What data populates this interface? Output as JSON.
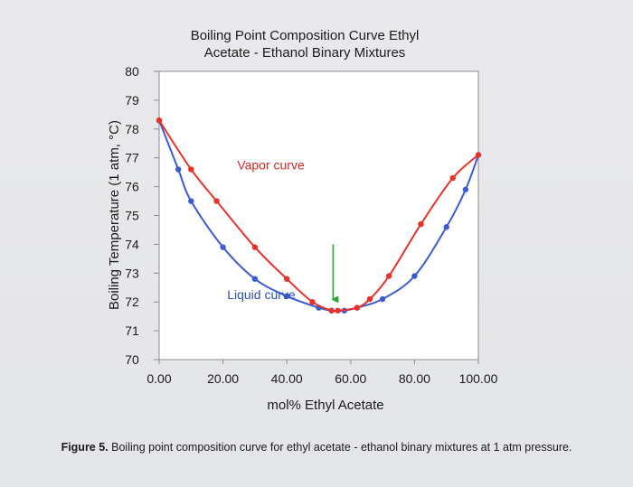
{
  "chart_data": {
    "type": "line",
    "title_line1": "Boiling Point Composition Curve Ethyl",
    "title_line2": "Acetate - Ethanol Binary Mixtures",
    "xlabel": "mol% Ethyl Acetate",
    "ylabel": "Boiling Temperature (1 atm, °C)",
    "xlim": [
      0,
      100
    ],
    "ylim": [
      70,
      80
    ],
    "x_ticks": [
      "0.00",
      "20.00",
      "40.00",
      "60.00",
      "80.00",
      "100.00"
    ],
    "y_ticks": [
      "70",
      "71",
      "72",
      "73",
      "74",
      "75",
      "76",
      "77",
      "78",
      "79",
      "80"
    ],
    "grid": false,
    "series": [
      {
        "name": "Vapor curve",
        "color": "#e8312a",
        "x": [
          0,
          10,
          18,
          30,
          40,
          48,
          54,
          56,
          62,
          66,
          72,
          82,
          92,
          100
        ],
        "y": [
          78.3,
          76.6,
          75.5,
          73.9,
          72.8,
          72.0,
          71.7,
          71.7,
          71.8,
          72.1,
          72.9,
          74.7,
          76.3,
          77.1
        ]
      },
      {
        "name": "Liquid curve",
        "color": "#3a5bd1",
        "x": [
          0,
          6,
          10,
          20,
          30,
          40,
          50,
          54,
          58,
          62,
          70,
          80,
          90,
          96,
          100
        ],
        "y": [
          78.3,
          76.6,
          75.5,
          73.9,
          72.8,
          72.2,
          71.8,
          71.7,
          71.7,
          71.8,
          72.1,
          72.9,
          74.6,
          75.9,
          77.1
        ]
      }
    ],
    "annotations": [
      {
        "text": "Vapor curve",
        "x": 35,
        "y": 76.6,
        "color": "#d42a23"
      },
      {
        "text": "Liquid curve",
        "x": 32,
        "y": 72.1,
        "color": "#2c4fb8"
      }
    ],
    "arrow": {
      "x": 54.5,
      "y_from": 74.0,
      "y_to": 71.9,
      "color": "#2aa52f"
    }
  },
  "figure_caption": {
    "label": "Figure 5.",
    "text": " Boiling point composition curve for ethyl acetate - ethanol binary mixtures at 1 atm pressure."
  }
}
